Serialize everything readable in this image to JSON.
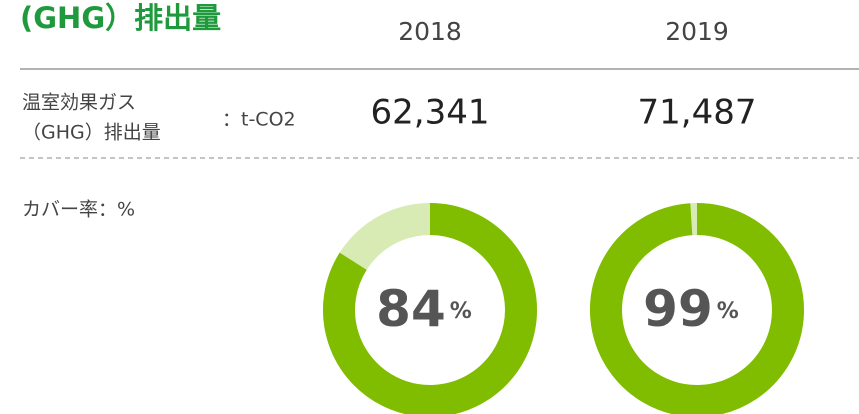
{
  "title": "(GHG）排出量",
  "table": {
    "years": [
      "2018",
      "2019"
    ],
    "row": {
      "label_lines": [
        "温室効果ガス",
        "（GHG）排出量"
      ],
      "unit": "：t-CO2",
      "values": [
        "62,341",
        "71,487"
      ]
    }
  },
  "coverage": {
    "label": "カバー率：%",
    "type": "donut",
    "values": [
      84,
      99
    ],
    "unit": "%",
    "color": "#80bd00",
    "rest_color": "#d8ebb5"
  }
}
